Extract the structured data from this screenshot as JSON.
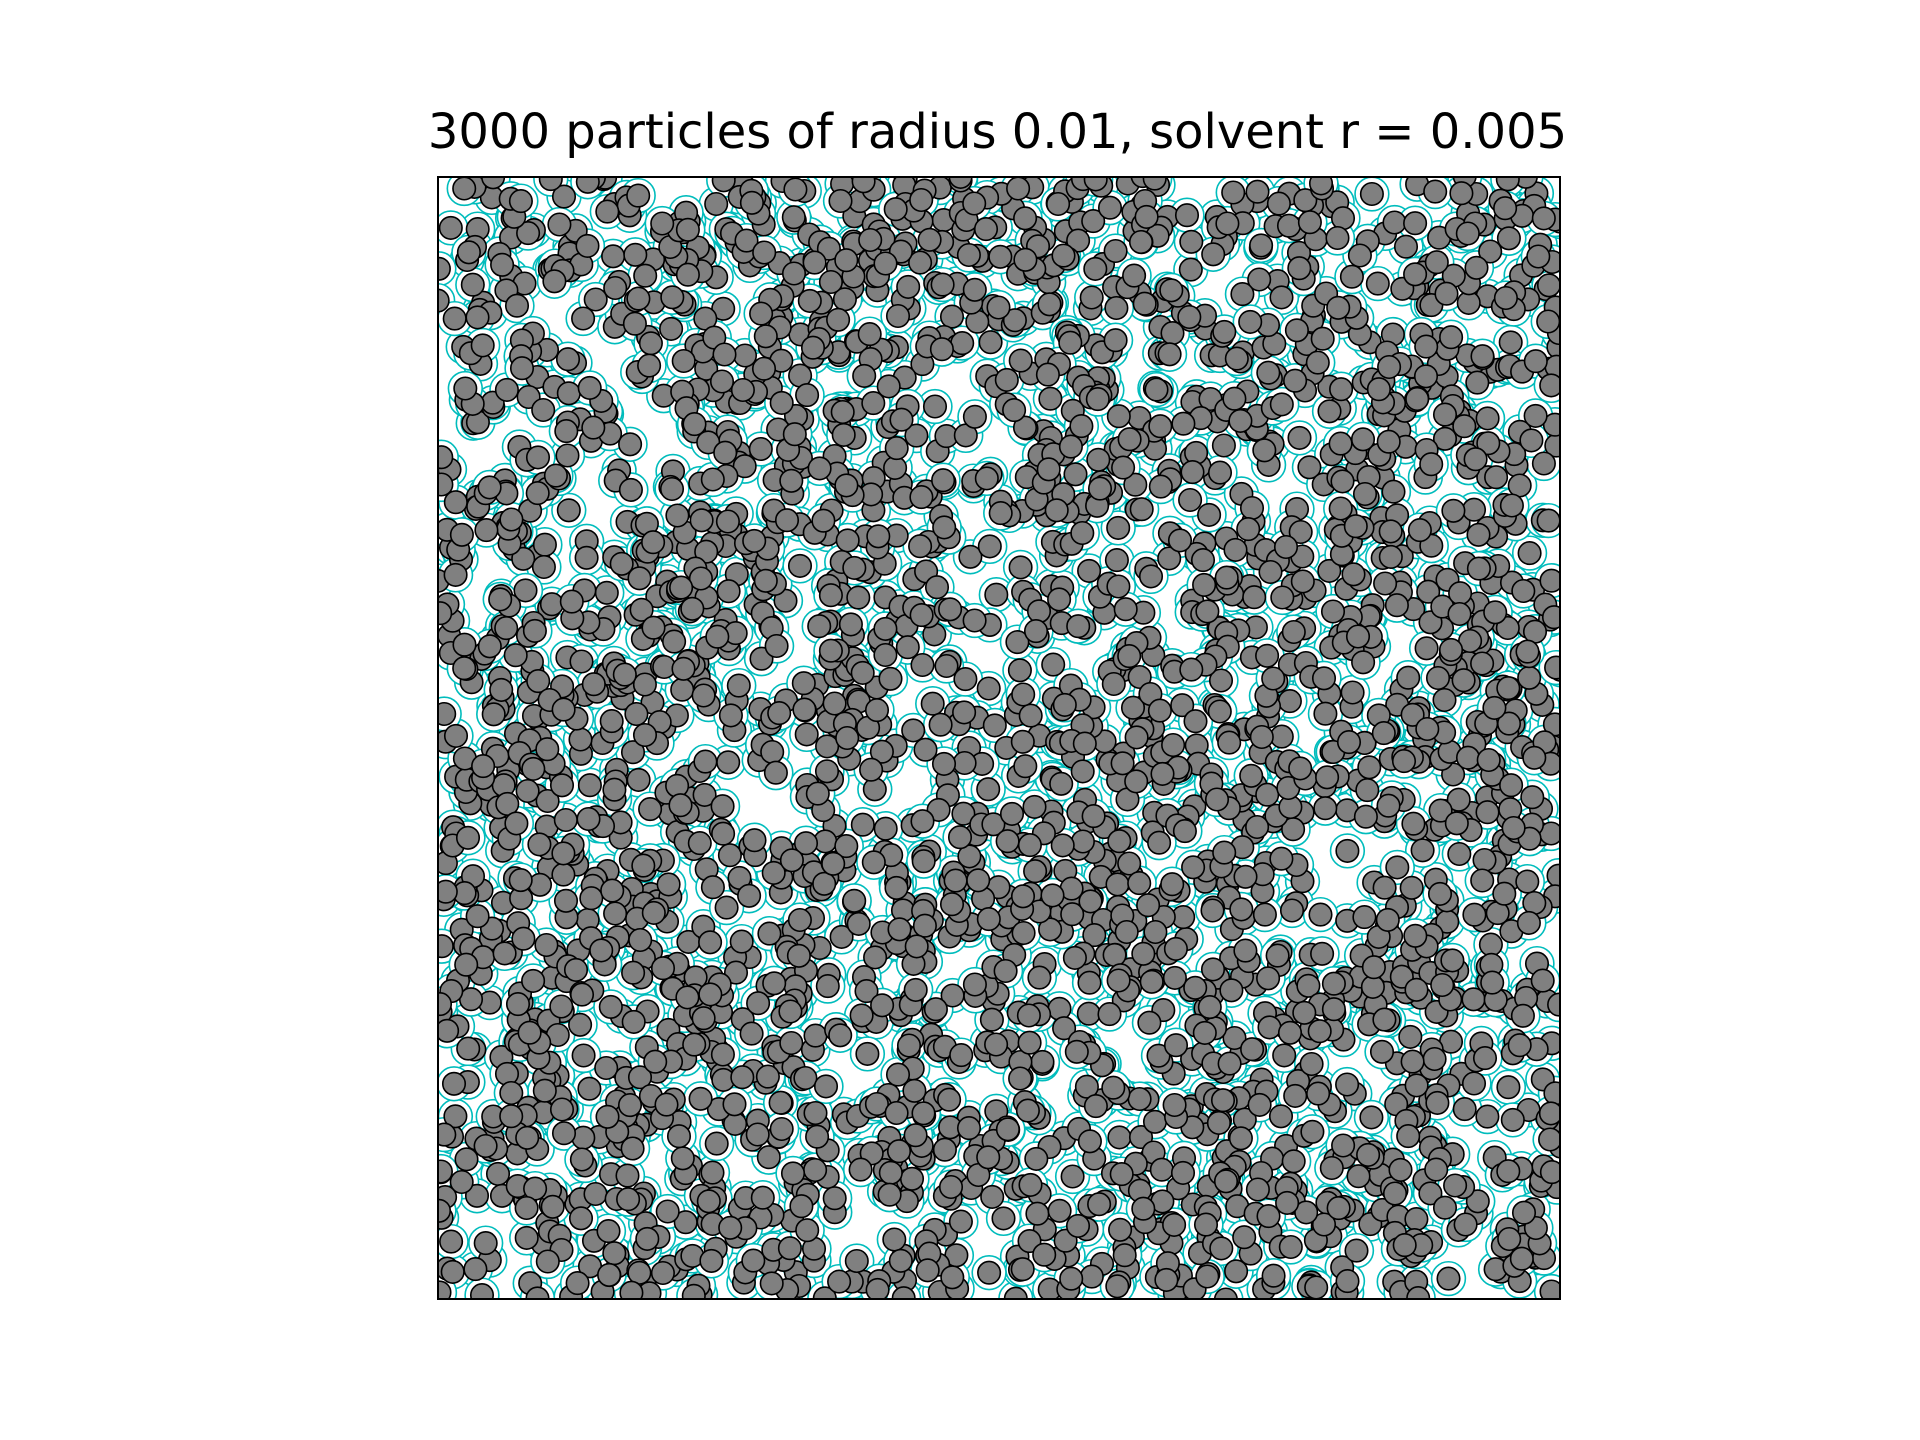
{
  "chart_data": {
    "type": "scatter",
    "title": "3000 particles of radius 0.01, solvent r = 0.005",
    "xlabel": "",
    "ylabel": "",
    "xlim": [
      0,
      1
    ],
    "ylim": [
      0,
      1
    ],
    "axis_ticks": "none",
    "grid": false,
    "legend": "none",
    "series": [
      {
        "marker": "circle",
        "count": 3000,
        "radius": 0.01,
        "face_color": "#808080",
        "edge_color": "#000000"
      },
      {
        "marker": "solvent-shell",
        "radius_offset": 0.005,
        "color": "#00bcbc"
      }
    ],
    "frame_color": "#000000",
    "background_color": "#ffffff"
  }
}
